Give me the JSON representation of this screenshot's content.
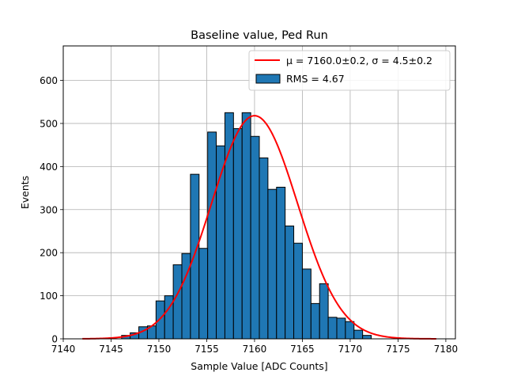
{
  "chart_data": {
    "type": "bar",
    "title": "Baseline value, Ped Run",
    "xlabel": "Sample Value [ADC Counts]",
    "ylabel": "Events",
    "xlim": [
      7140,
      7181
    ],
    "ylim": [
      0,
      680
    ],
    "xticks": [
      7140,
      7145,
      7150,
      7155,
      7160,
      7165,
      7170,
      7175,
      7180
    ],
    "yticks": [
      0,
      100,
      200,
      300,
      400,
      500,
      600
    ],
    "grid": true,
    "legend_position": "top-right",
    "bar_color": "#1f77b4",
    "fit_color": "#ff0000",
    "bin_width": 0.9,
    "bin_start": 7146.1,
    "histogram": {
      "name": "RMS = 4.67",
      "values": [
        8,
        14,
        28,
        30,
        88,
        100,
        172,
        198,
        382,
        210,
        480,
        448,
        525,
        488,
        525,
        470,
        420,
        347,
        352,
        262,
        222,
        162,
        82,
        128,
        50,
        48,
        40,
        20,
        8
      ]
    },
    "fit": {
      "name": "μ = 7160.0±0.2, σ = 4.5±0.2",
      "mu": 7160.0,
      "sigma": 4.5,
      "amplitude": 518,
      "x_range": [
        7142,
        7179
      ]
    }
  }
}
